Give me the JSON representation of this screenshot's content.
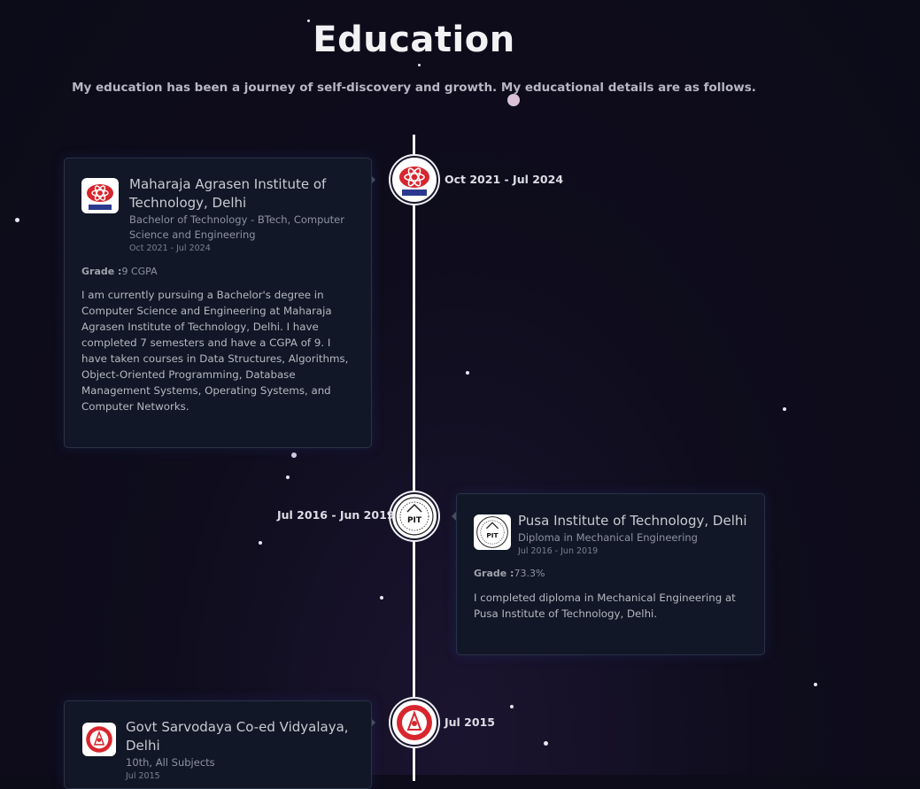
{
  "section": {
    "title": "Education",
    "subtitle": "My education has been a journey of self-discovery and growth. My educational details are as follows."
  },
  "education": [
    {
      "date": "Oct 2021 - Jul 2024",
      "school": "Maharaja Agrasen Institute of Technology, Delhi",
      "degree": "Bachelor of Technology - BTech, Computer Science and Engineering",
      "period": "Oct 2021 - Jul 2024",
      "grade_label": "Grade :",
      "grade": "9 CGPA",
      "description": "I am currently pursuing a Bachelor's degree in Computer Science and Engineering at Maharaja Agrasen Institute of Technology, Delhi. I have completed 7 semesters and have a CGPA of 9. I have taken courses in Data Structures, Algorithms, Object-Oriented Programming, Database Management Systems, Operating Systems, and Computer Networks.",
      "logo_text": "MAIT",
      "logo_icon": "mait-logo-icon"
    },
    {
      "date": "Jul 2016 - Jun 2019",
      "school": "Pusa Institute of Technology, Delhi",
      "degree": "Diploma in Mechanical Engineering",
      "period": "Jul 2016 - Jun 2019",
      "grade_label": "Grade :",
      "grade": "73.3%",
      "description": "I completed diploma in Mechanical Engineering at Pusa Institute of Technology, Delhi.",
      "logo_text": "PIT",
      "logo_icon": "pit-logo-icon"
    },
    {
      "date": "Jul 2015",
      "school": "Govt Sarvodaya Co-ed Vidyalaya, Delhi",
      "degree": "10th, All Subjects",
      "period": "Jul 2015",
      "logo_icon": "school-emblem-icon"
    }
  ],
  "colors": {
    "background": "#0c0b18",
    "card": "#111726",
    "timeline": "#f2f2f5",
    "mait_red": "#d8262e",
    "mait_blue": "#2b3a8f"
  }
}
